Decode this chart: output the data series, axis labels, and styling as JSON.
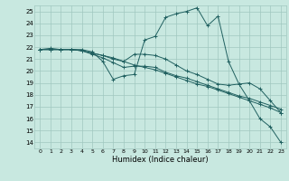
{
  "xlabel": "Humidex (Indice chaleur)",
  "xlim": [
    -0.5,
    23.5
  ],
  "ylim": [
    13.5,
    25.5
  ],
  "yticks": [
    14,
    15,
    16,
    17,
    18,
    19,
    20,
    21,
    22,
    23,
    24,
    25
  ],
  "xticks": [
    0,
    1,
    2,
    3,
    4,
    5,
    6,
    7,
    8,
    9,
    10,
    11,
    12,
    13,
    14,
    15,
    16,
    17,
    18,
    19,
    20,
    21,
    22,
    23
  ],
  "bg_color": "#c8e8e0",
  "grid_color": "#a0c8c0",
  "line_color": "#206060",
  "series": [
    [
      21.8,
      21.9,
      21.8,
      21.8,
      21.8,
      21.6,
      20.8,
      19.3,
      19.6,
      19.7,
      22.6,
      22.9,
      24.5,
      24.8,
      25.0,
      25.3,
      23.8,
      24.6,
      20.8,
      18.9,
      17.5,
      16.0,
      15.3,
      14.0
    ],
    [
      21.8,
      21.8,
      21.8,
      21.8,
      21.7,
      21.5,
      21.3,
      21.1,
      20.8,
      21.4,
      21.4,
      21.3,
      21.0,
      20.5,
      20.0,
      19.7,
      19.3,
      18.9,
      18.8,
      18.9,
      19.0,
      18.5,
      17.5,
      16.5
    ],
    [
      21.8,
      21.8,
      21.8,
      21.8,
      21.7,
      21.4,
      21.1,
      20.7,
      20.3,
      20.4,
      20.4,
      20.3,
      19.9,
      19.6,
      19.4,
      19.1,
      18.8,
      18.5,
      18.2,
      17.9,
      17.7,
      17.4,
      17.1,
      16.8
    ],
    [
      21.8,
      21.8,
      21.8,
      21.8,
      21.7,
      21.5,
      21.3,
      21.0,
      20.8,
      20.5,
      20.3,
      20.1,
      19.8,
      19.5,
      19.2,
      18.9,
      18.7,
      18.4,
      18.1,
      17.8,
      17.5,
      17.2,
      16.9,
      16.5
    ]
  ]
}
